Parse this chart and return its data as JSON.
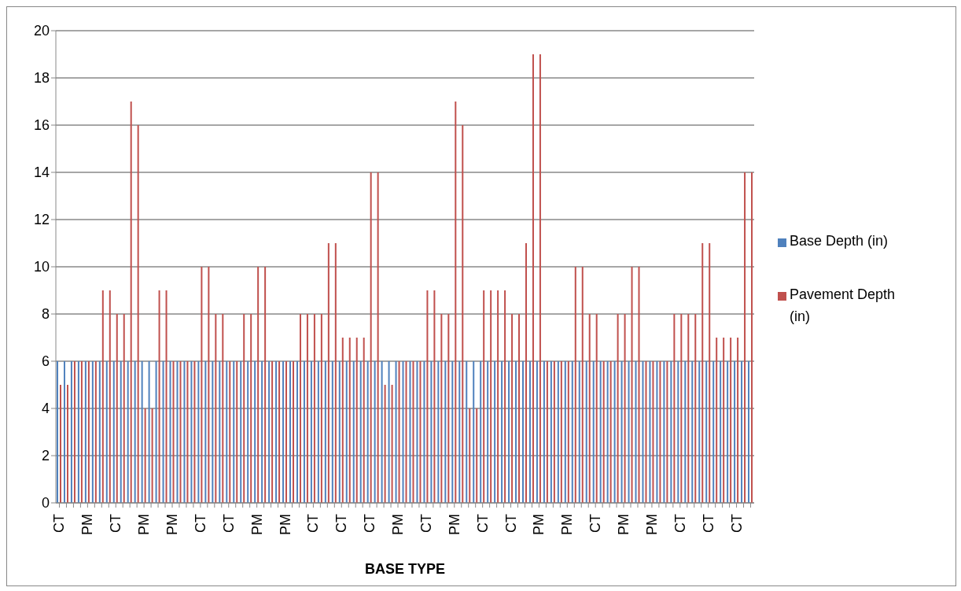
{
  "chart_data": {
    "type": "bar",
    "xlabel": "BASE TYPE",
    "categories": [
      "CT",
      null,
      null,
      null,
      "PM",
      null,
      null,
      null,
      "CT",
      null,
      null,
      null,
      "PM",
      null,
      null,
      null,
      "PM",
      null,
      null,
      null,
      "CT",
      null,
      null,
      null,
      "CT",
      null,
      null,
      null,
      "PM",
      null,
      null,
      null,
      "PM",
      null,
      null,
      null,
      "CT",
      null,
      null,
      null,
      "CT",
      null,
      null,
      null,
      "CT",
      null,
      null,
      null,
      "PM",
      null,
      null,
      null,
      "CT",
      null,
      null,
      null,
      "PM",
      null,
      null,
      null,
      "CT",
      null,
      null,
      null,
      "CT",
      null,
      null,
      null,
      "PM",
      null,
      null,
      null,
      "PM",
      null,
      null,
      null,
      "CT",
      null,
      null,
      null,
      "PM",
      null,
      null,
      null,
      "PM",
      null,
      null,
      null,
      "CT",
      null,
      null,
      null,
      "CT",
      null,
      null,
      null,
      "CT",
      null,
      null
    ],
    "series": [
      {
        "name": "Base Depth (in)",
        "color": "#4f81bd",
        "values": [
          6,
          6,
          6,
          6,
          6,
          6,
          6,
          6,
          6,
          6,
          6,
          6,
          6,
          6,
          6,
          6,
          6,
          6,
          6,
          6,
          6,
          6,
          6,
          6,
          6,
          6,
          6,
          6,
          6,
          6,
          6,
          6,
          6,
          6,
          6,
          6,
          6,
          6,
          6,
          6,
          6,
          6,
          6,
          6,
          6,
          6,
          6,
          6,
          6,
          6,
          6,
          6,
          6,
          6,
          6,
          6,
          6,
          6,
          6,
          6,
          6,
          6,
          6,
          6,
          6,
          6,
          6,
          6,
          6,
          6,
          6,
          6,
          6,
          6,
          6,
          6,
          6,
          6,
          6,
          6,
          6,
          6,
          6,
          6,
          6,
          6,
          6,
          6,
          6,
          6,
          6,
          6,
          6,
          6,
          6,
          6,
          6,
          6,
          6
        ]
      },
      {
        "name": "Pavement Depth (in)",
        "color": "#c0504d",
        "values": [
          5,
          5,
          6,
          6,
          6,
          6,
          9,
          9,
          8,
          8,
          17,
          16,
          4,
          4,
          9,
          9,
          6,
          6,
          6,
          6,
          10,
          10,
          8,
          8,
          6,
          6,
          8,
          8,
          10,
          10,
          6,
          6,
          6,
          6,
          8,
          8,
          8,
          8,
          11,
          11,
          7,
          7,
          7,
          7,
          14,
          14,
          5,
          5,
          6,
          6,
          6,
          6,
          9,
          9,
          8,
          8,
          17,
          16,
          4,
          4,
          9,
          9,
          9,
          9,
          8,
          8,
          11,
          19,
          19,
          6,
          6,
          6,
          6,
          10,
          10,
          8,
          8,
          6,
          6,
          8,
          8,
          10,
          10,
          6,
          6,
          6,
          6,
          8,
          8,
          8,
          8,
          11,
          11,
          7,
          7,
          7,
          7,
          14,
          14
        ]
      }
    ],
    "ylim": [
      0,
      20
    ],
    "yticks": [
      0,
      2,
      4,
      6,
      8,
      10,
      12,
      14,
      16,
      18,
      20
    ],
    "grid": "y",
    "legend": "right"
  }
}
